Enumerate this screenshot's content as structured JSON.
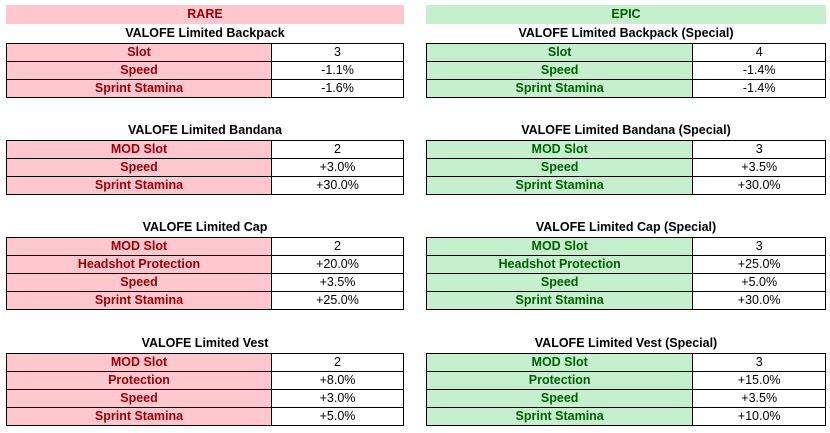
{
  "rare": {
    "header": "RARE",
    "items": [
      {
        "title": "VALOFE Limited Backpack",
        "rows": [
          {
            "label": "Slot",
            "value": "3"
          },
          {
            "label": "Speed",
            "value": "-1.1%"
          },
          {
            "label": "Sprint Stamina",
            "value": "-1.6%"
          }
        ]
      },
      {
        "title": "VALOFE Limited Bandana",
        "rows": [
          {
            "label": "MOD Slot",
            "value": "2"
          },
          {
            "label": "Speed",
            "value": "+3.0%"
          },
          {
            "label": "Sprint Stamina",
            "value": "+30.0%"
          }
        ]
      },
      {
        "title": "VALOFE Limited Cap",
        "rows": [
          {
            "label": "MOD Slot",
            "value": "2"
          },
          {
            "label": "Headshot Protection",
            "value": "+20.0%"
          },
          {
            "label": "Speed",
            "value": "+3.5%"
          },
          {
            "label": "Sprint Stamina",
            "value": "+25.0%"
          }
        ]
      },
      {
        "title": "VALOFE Limited Vest",
        "rows": [
          {
            "label": "MOD Slot",
            "value": "2"
          },
          {
            "label": "Protection",
            "value": "+8.0%"
          },
          {
            "label": "Speed",
            "value": "+3.0%"
          },
          {
            "label": "Sprint Stamina",
            "value": "+5.0%"
          }
        ]
      }
    ]
  },
  "epic": {
    "header": "EPIC",
    "items": [
      {
        "title": "VALOFE Limited Backpack (Special)",
        "rows": [
          {
            "label": "Slot",
            "value": "4"
          },
          {
            "label": "Speed",
            "value": "-1.4%"
          },
          {
            "label": "Sprint Stamina",
            "value": "-1.4%"
          }
        ]
      },
      {
        "title": "VALOFE Limited Bandana (Special)",
        "rows": [
          {
            "label": "MOD Slot",
            "value": "3"
          },
          {
            "label": "Speed",
            "value": "+3.5%"
          },
          {
            "label": "Sprint Stamina",
            "value": "+30.0%"
          }
        ]
      },
      {
        "title": "VALOFE Limited Cap (Special)",
        "rows": [
          {
            "label": "MOD Slot",
            "value": "3"
          },
          {
            "label": "Headshot Protection",
            "value": "+25.0%"
          },
          {
            "label": "Speed",
            "value": "+5.0%"
          },
          {
            "label": "Sprint Stamina",
            "value": "+30.0%"
          }
        ]
      },
      {
        "title": "VALOFE Limited Vest (Special)",
        "rows": [
          {
            "label": "MOD Slot",
            "value": "3"
          },
          {
            "label": "Protection",
            "value": "+15.0%"
          },
          {
            "label": "Speed",
            "value": "+3.5%"
          },
          {
            "label": "Sprint Stamina",
            "value": "+10.0%"
          }
        ]
      }
    ]
  }
}
